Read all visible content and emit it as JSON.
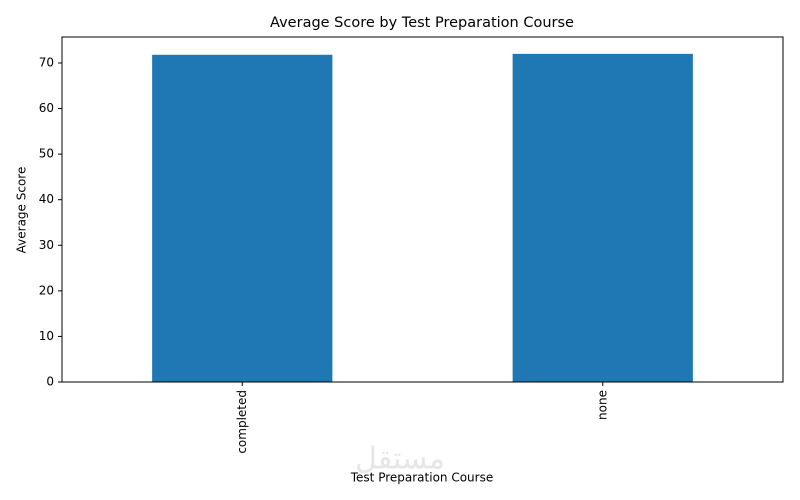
{
  "chart_data": {
    "type": "bar",
    "title": "Average Score by Test Preparation Course",
    "x_label": "Test Preparation Course",
    "y_label": "Average Score",
    "categories": [
      "completed",
      "none"
    ],
    "values": [
      71.8,
      72.0
    ],
    "color": "#1f77b4",
    "ylim": [
      0,
      75.7
    ],
    "yticks": [
      0,
      10,
      20,
      30,
      40,
      50,
      60,
      70
    ],
    "grid": false
  },
  "watermark": "مستقل"
}
